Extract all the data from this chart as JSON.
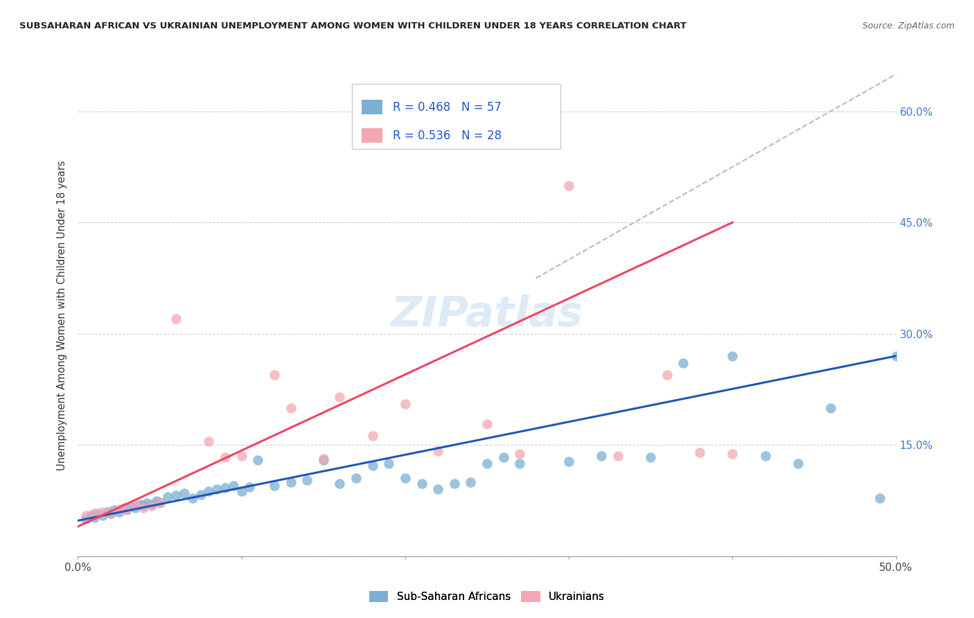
{
  "title": "SUBSAHARAN AFRICAN VS UKRAINIAN UNEMPLOYMENT AMONG WOMEN WITH CHILDREN UNDER 18 YEARS CORRELATION CHART",
  "source": "Source: ZipAtlas.com",
  "ylabel": "Unemployment Among Women with Children Under 18 years",
  "xlim": [
    0.0,
    0.5
  ],
  "ylim": [
    0.0,
    0.65
  ],
  "yticks": [
    0.0,
    0.15,
    0.3,
    0.45,
    0.6
  ],
  "ytick_labels": [
    "",
    "15.0%",
    "30.0%",
    "45.0%",
    "60.0%"
  ],
  "xticks": [
    0.0,
    0.1,
    0.2,
    0.3,
    0.4,
    0.5
  ],
  "xtick_labels": [
    "0.0%",
    "",
    "",
    "",
    "",
    "50.0%"
  ],
  "color_blue": "#7BAFD4",
  "color_pink": "#F4A7B2",
  "color_blue_line": "#2255BB",
  "color_pink_line": "#EE4466",
  "color_diag": "#BBBBBB",
  "watermark": "ZIPatlas",
  "legend_label1": "Sub-Saharan Africans",
  "legend_label2": "Ukrainians",
  "blue_scatter_x": [
    0.005,
    0.008,
    0.01,
    0.012,
    0.015,
    0.018,
    0.02,
    0.022,
    0.025,
    0.028,
    0.03,
    0.033,
    0.035,
    0.038,
    0.04,
    0.042,
    0.045,
    0.048,
    0.05,
    0.055,
    0.06,
    0.065,
    0.07,
    0.075,
    0.08,
    0.085,
    0.09,
    0.095,
    0.1,
    0.105,
    0.11,
    0.12,
    0.13,
    0.14,
    0.15,
    0.16,
    0.17,
    0.18,
    0.19,
    0.2,
    0.21,
    0.22,
    0.23,
    0.24,
    0.25,
    0.26,
    0.27,
    0.3,
    0.32,
    0.35,
    0.37,
    0.4,
    0.42,
    0.44,
    0.46,
    0.49,
    0.5
  ],
  "blue_scatter_y": [
    0.05,
    0.055,
    0.052,
    0.058,
    0.055,
    0.06,
    0.058,
    0.062,
    0.06,
    0.065,
    0.063,
    0.068,
    0.065,
    0.07,
    0.068,
    0.072,
    0.07,
    0.075,
    0.073,
    0.08,
    0.082,
    0.085,
    0.078,
    0.083,
    0.088,
    0.09,
    0.092,
    0.095,
    0.088,
    0.093,
    0.13,
    0.095,
    0.1,
    0.103,
    0.13,
    0.098,
    0.105,
    0.122,
    0.125,
    0.105,
    0.098,
    0.09,
    0.098,
    0.1,
    0.125,
    0.133,
    0.125,
    0.128,
    0.135,
    0.133,
    0.26,
    0.27,
    0.135,
    0.125,
    0.2,
    0.078,
    0.27
  ],
  "pink_scatter_x": [
    0.005,
    0.01,
    0.015,
    0.02,
    0.025,
    0.03,
    0.035,
    0.04,
    0.045,
    0.05,
    0.06,
    0.08,
    0.09,
    0.1,
    0.12,
    0.13,
    0.15,
    0.16,
    0.18,
    0.2,
    0.22,
    0.25,
    0.27,
    0.3,
    0.33,
    0.36,
    0.38,
    0.4
  ],
  "pink_scatter_y": [
    0.055,
    0.058,
    0.06,
    0.058,
    0.063,
    0.062,
    0.07,
    0.065,
    0.068,
    0.072,
    0.32,
    0.155,
    0.133,
    0.135,
    0.245,
    0.2,
    0.132,
    0.215,
    0.162,
    0.205,
    0.142,
    0.178,
    0.138,
    0.5,
    0.135,
    0.245,
    0.14,
    0.138
  ],
  "blue_line_x": [
    0.0,
    0.5
  ],
  "blue_line_y": [
    0.048,
    0.27
  ],
  "pink_line_x": [
    0.0,
    0.4
  ],
  "pink_line_y": [
    0.04,
    0.45
  ],
  "diag_line_x": [
    0.28,
    0.5
  ],
  "diag_line_y": [
    0.375,
    0.65
  ]
}
